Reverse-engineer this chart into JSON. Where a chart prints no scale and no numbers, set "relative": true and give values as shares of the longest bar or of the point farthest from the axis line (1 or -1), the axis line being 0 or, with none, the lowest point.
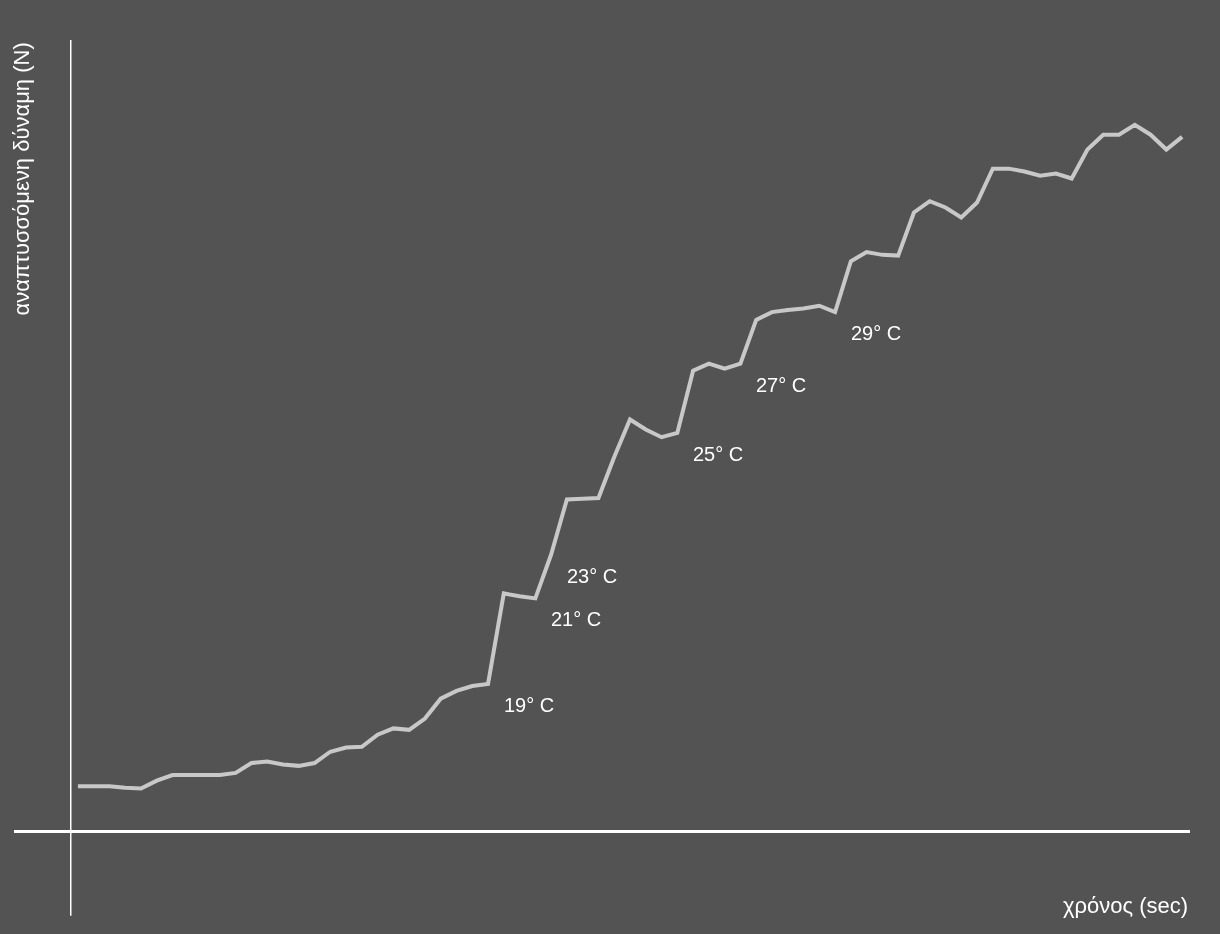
{
  "chart_data": {
    "type": "line",
    "relative": true,
    "xlabel": "χρόνος (sec)",
    "ylabel": "αναπτυσσόμενη δύναμη (N)",
    "categories": [
      null,
      null,
      null,
      null,
      null,
      null,
      null,
      null,
      null,
      null,
      null,
      null,
      null,
      null,
      null,
      null,
      null,
      null,
      null,
      null,
      null,
      null,
      null,
      null,
      null,
      null,
      null,
      null,
      null,
      null,
      null,
      null,
      null,
      null,
      null,
      null,
      null,
      null,
      null,
      null,
      null,
      null,
      null,
      null,
      null,
      null,
      null,
      null,
      null,
      null,
      null,
      null,
      null,
      null,
      null,
      null,
      null,
      null,
      null,
      null,
      null,
      null,
      null,
      null,
      null,
      null,
      null,
      null,
      null,
      null,
      null
    ],
    "series": [
      {
        "color": "#c8c8c8",
        "values": [
          0.064,
          0.064,
          0.064,
          0.062,
          0.061,
          0.072,
          0.08,
          0.08,
          0.08,
          0.08,
          0.083,
          0.097,
          0.099,
          0.095,
          0.093,
          0.097,
          0.113,
          0.119,
          0.12,
          0.137,
          0.146,
          0.144,
          0.16,
          0.188,
          0.199,
          0.206,
          0.209,
          0.337,
          0.333,
          0.33,
          0.392,
          0.47,
          0.471,
          0.472,
          0.53,
          0.583,
          0.569,
          0.558,
          0.564,
          0.652,
          0.662,
          0.655,
          0.662,
          0.724,
          0.735,
          0.738,
          0.74,
          0.744,
          0.735,
          0.807,
          0.82,
          0.816,
          0.815,
          0.876,
          0.892,
          0.883,
          0.869,
          0.89,
          0.938,
          0.938,
          0.934,
          0.928,
          0.931,
          0.924,
          0.965,
          0.986,
          0.986,
          1.0,
          0.986,
          0.965,
          0.983
        ]
      }
    ],
    "annotations": [
      "19° C",
      "21° C",
      "23° C",
      "25° C",
      "27° C",
      "29° C"
    ],
    "grid": false,
    "marker": "none",
    "line_style": "solid"
  }
}
